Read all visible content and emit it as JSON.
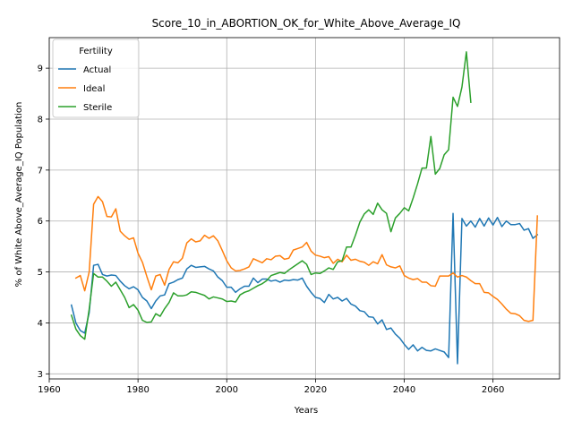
{
  "chart_data": {
    "type": "line",
    "title": "Score_10_in_ABORTION_OK_for_White_Above_Average_IQ",
    "xlabel": "Years",
    "ylabel": "% of White Above_Average_IQ Population",
    "xlim": [
      1960,
      2075
    ],
    "ylim": [
      2.9,
      9.6
    ],
    "xticks": [
      1960,
      1980,
      2000,
      2020,
      2040,
      2060
    ],
    "yticks": [
      3,
      4,
      5,
      6,
      7,
      8,
      9
    ],
    "grid": true,
    "legend": {
      "title": "Fertility",
      "placement": "top-left"
    },
    "series": [
      {
        "name": "Actual",
        "color": "#1f77b4",
        "points": [
          [
            1965,
            4.35
          ],
          [
            1966,
            4.0
          ],
          [
            1967,
            3.85
          ],
          [
            1968,
            3.8
          ],
          [
            1969,
            4.2
          ],
          [
            1970,
            5.13
          ],
          [
            1971,
            5.15
          ],
          [
            1972,
            4.95
          ],
          [
            1973,
            4.92
          ],
          [
            1974,
            4.94
          ],
          [
            1975,
            4.93
          ],
          [
            1976,
            4.82
          ],
          [
            1977,
            4.73
          ],
          [
            1978,
            4.67
          ],
          [
            1979,
            4.71
          ],
          [
            1980,
            4.65
          ],
          [
            1981,
            4.5
          ],
          [
            1982,
            4.43
          ],
          [
            1983,
            4.28
          ],
          [
            1984,
            4.43
          ],
          [
            1985,
            4.53
          ],
          [
            1986,
            4.55
          ],
          [
            1987,
            4.77
          ],
          [
            1988,
            4.8
          ],
          [
            1989,
            4.85
          ],
          [
            1990,
            4.88
          ],
          [
            1991,
            5.06
          ],
          [
            1992,
            5.13
          ],
          [
            1993,
            5.09
          ],
          [
            1994,
            5.1
          ],
          [
            1995,
            5.11
          ],
          [
            1996,
            5.06
          ],
          [
            1997,
            5.02
          ],
          [
            1998,
            4.9
          ],
          [
            1999,
            4.83
          ],
          [
            2000,
            4.7
          ],
          [
            2001,
            4.7
          ],
          [
            2002,
            4.6
          ],
          [
            2003,
            4.67
          ],
          [
            2004,
            4.72
          ],
          [
            2005,
            4.72
          ],
          [
            2006,
            4.88
          ],
          [
            2007,
            4.79
          ],
          [
            2008,
            4.86
          ],
          [
            2009,
            4.86
          ],
          [
            2010,
            4.82
          ],
          [
            2011,
            4.84
          ],
          [
            2012,
            4.8
          ],
          [
            2013,
            4.84
          ],
          [
            2014,
            4.83
          ],
          [
            2015,
            4.85
          ],
          [
            2016,
            4.84
          ],
          [
            2017,
            4.88
          ],
          [
            2018,
            4.72
          ],
          [
            2019,
            4.6
          ],
          [
            2020,
            4.5
          ],
          [
            2021,
            4.48
          ],
          [
            2022,
            4.4
          ],
          [
            2023,
            4.56
          ],
          [
            2024,
            4.47
          ],
          [
            2025,
            4.5
          ],
          [
            2026,
            4.43
          ],
          [
            2027,
            4.48
          ],
          [
            2028,
            4.37
          ],
          [
            2029,
            4.33
          ],
          [
            2030,
            4.24
          ],
          [
            2031,
            4.22
          ],
          [
            2032,
            4.12
          ],
          [
            2033,
            4.11
          ],
          [
            2034,
            3.98
          ],
          [
            2035,
            4.06
          ],
          [
            2036,
            3.87
          ],
          [
            2037,
            3.9
          ],
          [
            2038,
            3.78
          ],
          [
            2039,
            3.7
          ],
          [
            2040,
            3.58
          ],
          [
            2041,
            3.48
          ],
          [
            2042,
            3.57
          ],
          [
            2043,
            3.45
          ],
          [
            2044,
            3.52
          ],
          [
            2045,
            3.46
          ],
          [
            2046,
            3.45
          ],
          [
            2047,
            3.49
          ],
          [
            2048,
            3.46
          ],
          [
            2049,
            3.43
          ],
          [
            2050,
            3.32
          ],
          [
            2051,
            6.15
          ],
          [
            2052,
            3.2
          ],
          [
            2053,
            6.05
          ],
          [
            2054,
            5.9
          ],
          [
            2055,
            6.0
          ],
          [
            2056,
            5.88
          ],
          [
            2057,
            6.05
          ],
          [
            2058,
            5.9
          ],
          [
            2059,
            6.06
          ],
          [
            2060,
            5.92
          ],
          [
            2061,
            6.07
          ],
          [
            2062,
            5.89
          ],
          [
            2063,
            6.0
          ],
          [
            2064,
            5.93
          ],
          [
            2065,
            5.93
          ],
          [
            2066,
            5.95
          ],
          [
            2067,
            5.82
          ],
          [
            2068,
            5.85
          ],
          [
            2069,
            5.66
          ],
          [
            2070,
            5.73
          ]
        ]
      },
      {
        "name": "Ideal",
        "color": "#ff7f0e",
        "points": [
          [
            1966,
            4.88
          ],
          [
            1967,
            4.93
          ],
          [
            1968,
            4.63
          ],
          [
            1969,
            5.0
          ],
          [
            1970,
            6.33
          ],
          [
            1971,
            6.48
          ],
          [
            1972,
            6.38
          ],
          [
            1973,
            6.09
          ],
          [
            1974,
            6.08
          ],
          [
            1975,
            6.24
          ],
          [
            1976,
            5.8
          ],
          [
            1977,
            5.71
          ],
          [
            1978,
            5.64
          ],
          [
            1979,
            5.67
          ],
          [
            1980,
            5.37
          ],
          [
            1981,
            5.19
          ],
          [
            1982,
            4.91
          ],
          [
            1983,
            4.65
          ],
          [
            1984,
            4.92
          ],
          [
            1985,
            4.95
          ],
          [
            1986,
            4.74
          ],
          [
            1987,
            5.05
          ],
          [
            1988,
            5.2
          ],
          [
            1989,
            5.18
          ],
          [
            1990,
            5.27
          ],
          [
            1991,
            5.57
          ],
          [
            1992,
            5.65
          ],
          [
            1993,
            5.59
          ],
          [
            1994,
            5.61
          ],
          [
            1995,
            5.72
          ],
          [
            1996,
            5.66
          ],
          [
            1997,
            5.71
          ],
          [
            1998,
            5.61
          ],
          [
            1999,
            5.42
          ],
          [
            2000,
            5.22
          ],
          [
            2001,
            5.08
          ],
          [
            2002,
            5.02
          ],
          [
            2003,
            5.03
          ],
          [
            2004,
            5.06
          ],
          [
            2005,
            5.1
          ],
          [
            2006,
            5.26
          ],
          [
            2007,
            5.22
          ],
          [
            2008,
            5.18
          ],
          [
            2009,
            5.26
          ],
          [
            2010,
            5.24
          ],
          [
            2011,
            5.31
          ],
          [
            2012,
            5.32
          ],
          [
            2013,
            5.25
          ],
          [
            2014,
            5.27
          ],
          [
            2015,
            5.43
          ],
          [
            2016,
            5.46
          ],
          [
            2017,
            5.49
          ],
          [
            2018,
            5.58
          ],
          [
            2019,
            5.41
          ],
          [
            2020,
            5.33
          ],
          [
            2021,
            5.31
          ],
          [
            2022,
            5.28
          ],
          [
            2023,
            5.3
          ],
          [
            2024,
            5.17
          ],
          [
            2025,
            5.25
          ],
          [
            2026,
            5.2
          ],
          [
            2027,
            5.33
          ],
          [
            2028,
            5.23
          ],
          [
            2029,
            5.25
          ],
          [
            2030,
            5.21
          ],
          [
            2031,
            5.19
          ],
          [
            2032,
            5.13
          ],
          [
            2033,
            5.2
          ],
          [
            2034,
            5.16
          ],
          [
            2035,
            5.34
          ],
          [
            2036,
            5.14
          ],
          [
            2037,
            5.1
          ],
          [
            2038,
            5.08
          ],
          [
            2039,
            5.12
          ],
          [
            2040,
            4.93
          ],
          [
            2041,
            4.88
          ],
          [
            2042,
            4.85
          ],
          [
            2043,
            4.87
          ],
          [
            2044,
            4.8
          ],
          [
            2045,
            4.8
          ],
          [
            2046,
            4.73
          ],
          [
            2047,
            4.72
          ],
          [
            2048,
            4.92
          ],
          [
            2049,
            4.92
          ],
          [
            2050,
            4.92
          ],
          [
            2051,
            4.98
          ],
          [
            2052,
            4.9
          ],
          [
            2053,
            4.93
          ],
          [
            2054,
            4.9
          ],
          [
            2055,
            4.83
          ],
          [
            2056,
            4.77
          ],
          [
            2057,
            4.77
          ],
          [
            2058,
            4.6
          ],
          [
            2059,
            4.59
          ],
          [
            2060,
            4.52
          ],
          [
            2061,
            4.46
          ],
          [
            2062,
            4.37
          ],
          [
            2063,
            4.27
          ],
          [
            2064,
            4.19
          ],
          [
            2065,
            4.18
          ],
          [
            2066,
            4.14
          ],
          [
            2067,
            4.05
          ],
          [
            2068,
            4.03
          ],
          [
            2069,
            4.05
          ],
          [
            2070,
            6.1
          ]
        ]
      },
      {
        "name": "Sterile",
        "color": "#2ca02c",
        "points": [
          [
            1965,
            4.15
          ],
          [
            1966,
            3.88
          ],
          [
            1967,
            3.75
          ],
          [
            1968,
            3.68
          ],
          [
            1969,
            4.27
          ],
          [
            1970,
            4.97
          ],
          [
            1971,
            4.9
          ],
          [
            1972,
            4.9
          ],
          [
            1973,
            4.82
          ],
          [
            1974,
            4.72
          ],
          [
            1975,
            4.8
          ],
          [
            1976,
            4.65
          ],
          [
            1977,
            4.5
          ],
          [
            1978,
            4.3
          ],
          [
            1979,
            4.36
          ],
          [
            1980,
            4.25
          ],
          [
            1981,
            4.05
          ],
          [
            1982,
            4.01
          ],
          [
            1983,
            4.02
          ],
          [
            1984,
            4.18
          ],
          [
            1985,
            4.13
          ],
          [
            1986,
            4.28
          ],
          [
            1987,
            4.4
          ],
          [
            1988,
            4.59
          ],
          [
            1989,
            4.53
          ],
          [
            1990,
            4.53
          ],
          [
            1991,
            4.55
          ],
          [
            1992,
            4.61
          ],
          [
            1993,
            4.6
          ],
          [
            1994,
            4.57
          ],
          [
            1995,
            4.54
          ],
          [
            1996,
            4.47
          ],
          [
            1997,
            4.51
          ],
          [
            1998,
            4.49
          ],
          [
            1999,
            4.47
          ],
          [
            2000,
            4.42
          ],
          [
            2001,
            4.43
          ],
          [
            2002,
            4.41
          ],
          [
            2003,
            4.55
          ],
          [
            2004,
            4.6
          ],
          [
            2005,
            4.63
          ],
          [
            2006,
            4.68
          ],
          [
            2007,
            4.73
          ],
          [
            2008,
            4.77
          ],
          [
            2009,
            4.83
          ],
          [
            2010,
            4.93
          ],
          [
            2011,
            4.96
          ],
          [
            2012,
            4.99
          ],
          [
            2013,
            4.97
          ],
          [
            2014,
            5.04
          ],
          [
            2015,
            5.1
          ],
          [
            2016,
            5.16
          ],
          [
            2017,
            5.22
          ],
          [
            2018,
            5.15
          ],
          [
            2019,
            4.95
          ],
          [
            2020,
            4.98
          ],
          [
            2021,
            4.97
          ],
          [
            2022,
            5.02
          ],
          [
            2023,
            5.08
          ],
          [
            2024,
            5.05
          ],
          [
            2025,
            5.2
          ],
          [
            2026,
            5.22
          ],
          [
            2027,
            5.49
          ],
          [
            2028,
            5.49
          ],
          [
            2029,
            5.72
          ],
          [
            2030,
            5.98
          ],
          [
            2031,
            6.14
          ],
          [
            2032,
            6.22
          ],
          [
            2033,
            6.13
          ],
          [
            2034,
            6.35
          ],
          [
            2035,
            6.22
          ],
          [
            2036,
            6.15
          ],
          [
            2037,
            5.79
          ],
          [
            2038,
            6.06
          ],
          [
            2039,
            6.15
          ],
          [
            2040,
            6.26
          ],
          [
            2041,
            6.2
          ],
          [
            2042,
            6.45
          ],
          [
            2043,
            6.73
          ],
          [
            2044,
            7.04
          ],
          [
            2045,
            7.04
          ],
          [
            2046,
            7.66
          ],
          [
            2047,
            6.92
          ],
          [
            2048,
            7.03
          ],
          [
            2049,
            7.3
          ],
          [
            2050,
            7.4
          ],
          [
            2051,
            8.43
          ],
          [
            2052,
            8.25
          ],
          [
            2053,
            8.63
          ],
          [
            2054,
            9.32
          ],
          [
            2055,
            8.33
          ]
        ]
      }
    ]
  }
}
